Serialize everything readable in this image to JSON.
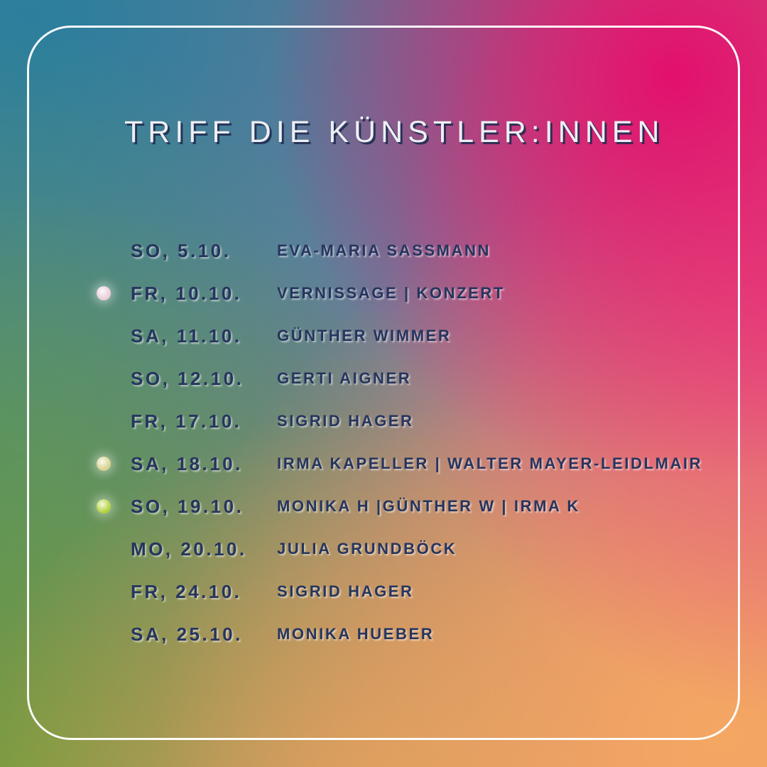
{
  "poster": {
    "title": "TRIFF DIE KÜNSTLER:INNEN",
    "rows": [
      {
        "date": "SO, 5.10.",
        "name": "EVA-MARIA SASSMANN",
        "dot": ""
      },
      {
        "date": "FR, 10.10.",
        "name": "VERNISSAGE | KONZERT",
        "dot": "pink"
      },
      {
        "date": "SA, 11.10.",
        "name": "GÜNTHER WIMMER",
        "dot": ""
      },
      {
        "date": "SO, 12.10.",
        "name": "GERTI AIGNER",
        "dot": ""
      },
      {
        "date": "FR, 17.10.",
        "name": "SIGRID HAGER",
        "dot": ""
      },
      {
        "date": "SA, 18.10.",
        "name": "IRMA KAPELLER | WALTER MAYER-LEIDLMAIR",
        "dot": "yellow"
      },
      {
        "date": "SO, 19.10.",
        "name": "MONIKA H |GÜNTHER W | IRMA K",
        "dot": "green"
      },
      {
        "date": "MO, 20.10.",
        "name": "JULIA GRUNDBÖCK",
        "dot": ""
      },
      {
        "date": "FR, 24.10.",
        "name": "SIGRID HAGER",
        "dot": ""
      },
      {
        "date": "SA, 25.10.",
        "name": "MONIKA HUEBER",
        "dot": ""
      }
    ],
    "colors": {
      "dot_pink": "#e9cdd9",
      "dot_yellow": "#d9d28c",
      "dot_green": "#b4d23a",
      "text_navy": "#26355e",
      "title_light": "#edeff4",
      "frame_white": "#ffffff"
    }
  }
}
